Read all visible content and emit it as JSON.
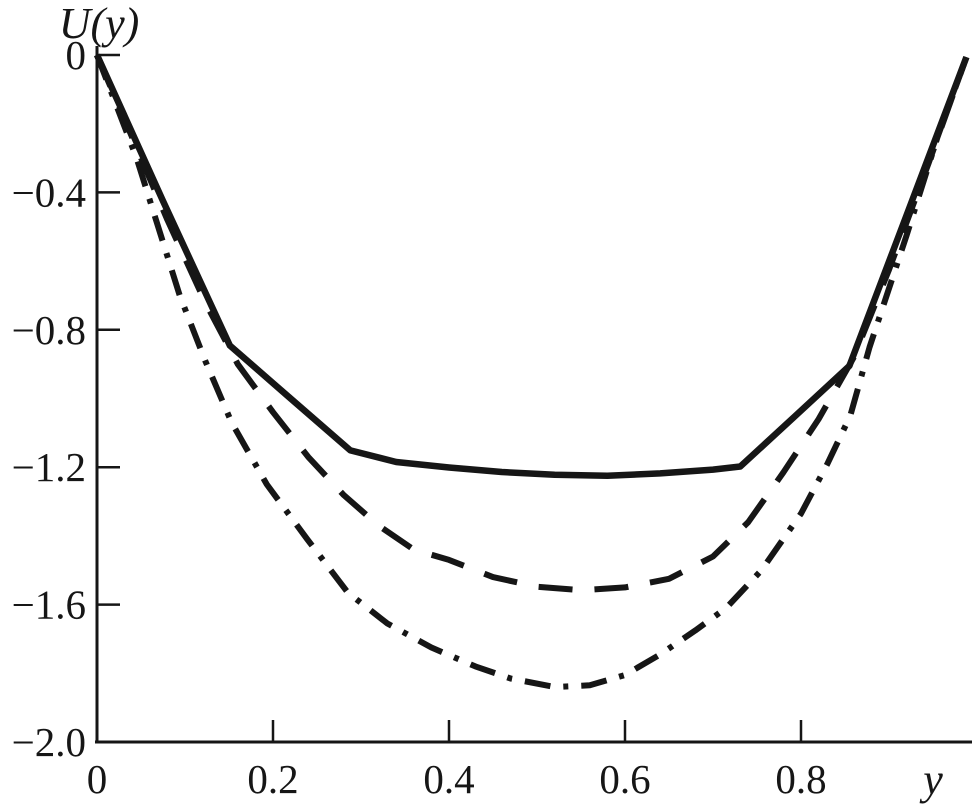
{
  "figure": {
    "background": "#ffffff",
    "ink": "#161616"
  },
  "chart_data": {
    "type": "line",
    "title": "",
    "y_axis": {
      "label": "U(y)",
      "range": [
        -2.0,
        0
      ],
      "ticks": [
        {
          "v": 0,
          "label": "0",
          "mark": true
        },
        {
          "v": -0.4,
          "label": "−0.4",
          "mark": true
        },
        {
          "v": -0.8,
          "label": "−0.8",
          "mark": true
        },
        {
          "v": -1.2,
          "label": "−1.2",
          "mark": true
        },
        {
          "v": -1.6,
          "label": "−1.6",
          "mark": true
        },
        {
          "v": -2.0,
          "label": "−2.0",
          "mark": false
        }
      ]
    },
    "x_axis": {
      "label": "y",
      "range": [
        0,
        1.0
      ],
      "ticks": [
        {
          "v": 0,
          "label": "0",
          "mark": false
        },
        {
          "v": 0.2,
          "label": "0.2",
          "mark": true
        },
        {
          "v": 0.4,
          "label": "0.4",
          "mark": true
        },
        {
          "v": 0.6,
          "label": "0.6",
          "mark": true
        },
        {
          "v": 0.8,
          "label": "0.8",
          "mark": true
        }
      ]
    },
    "grid": false,
    "legend": "none",
    "series": [
      {
        "name": "solid-profile",
        "style": "solid",
        "points": [
          [
            0,
            0
          ],
          [
            0.075,
            -0.425
          ],
          [
            0.151,
            -0.846
          ],
          [
            0.22,
            -1.0
          ],
          [
            0.288,
            -1.151
          ],
          [
            0.34,
            -1.185
          ],
          [
            0.4,
            -1.201
          ],
          [
            0.46,
            -1.214
          ],
          [
            0.52,
            -1.222
          ],
          [
            0.58,
            -1.225
          ],
          [
            0.64,
            -1.218
          ],
          [
            0.7,
            -1.207
          ],
          [
            0.731,
            -1.198
          ],
          [
            0.793,
            -1.052
          ],
          [
            0.855,
            -0.905
          ],
          [
            0.92,
            -0.466
          ],
          [
            0.988,
            -0.006
          ]
        ]
      },
      {
        "name": "dashed-profile",
        "style": "dashed",
        "points": [
          [
            0,
            0
          ],
          [
            0.04,
            -0.24
          ],
          [
            0.08,
            -0.48
          ],
          [
            0.123,
            -0.72
          ],
          [
            0.16,
            -0.9
          ],
          [
            0.2,
            -1.04
          ],
          [
            0.24,
            -1.17
          ],
          [
            0.28,
            -1.28
          ],
          [
            0.32,
            -1.37
          ],
          [
            0.36,
            -1.44
          ],
          [
            0.4,
            -1.47
          ],
          [
            0.45,
            -1.52
          ],
          [
            0.5,
            -1.548
          ],
          [
            0.55,
            -1.558
          ],
          [
            0.6,
            -1.55
          ],
          [
            0.65,
            -1.525
          ],
          [
            0.7,
            -1.46
          ],
          [
            0.74,
            -1.36
          ],
          [
            0.78,
            -1.215
          ],
          [
            0.82,
            -1.06
          ],
          [
            0.86,
            -0.88
          ],
          [
            0.9,
            -0.625
          ],
          [
            0.945,
            -0.315
          ],
          [
            0.988,
            -0.006
          ]
        ]
      },
      {
        "name": "dash-dot-profile",
        "style": "dashdot",
        "points": [
          [
            0,
            0
          ],
          [
            0.045,
            -0.3
          ],
          [
            0.094,
            -0.7
          ],
          [
            0.123,
            -0.89
          ],
          [
            0.153,
            -1.07
          ],
          [
            0.193,
            -1.25
          ],
          [
            0.239,
            -1.41
          ],
          [
            0.285,
            -1.565
          ],
          [
            0.33,
            -1.655
          ],
          [
            0.38,
            -1.725
          ],
          [
            0.43,
            -1.78
          ],
          [
            0.47,
            -1.815
          ],
          [
            0.52,
            -1.84
          ],
          [
            0.56,
            -1.835
          ],
          [
            0.6,
            -1.805
          ],
          [
            0.64,
            -1.745
          ],
          [
            0.68,
            -1.675
          ],
          [
            0.715,
            -1.61
          ],
          [
            0.755,
            -1.5
          ],
          [
            0.8,
            -1.335
          ],
          [
            0.83,
            -1.19
          ],
          [
            0.856,
            -1.05
          ],
          [
            0.878,
            -0.85
          ],
          [
            0.92,
            -0.525
          ],
          [
            0.955,
            -0.24
          ],
          [
            0.988,
            -0.006
          ]
        ]
      }
    ]
  }
}
